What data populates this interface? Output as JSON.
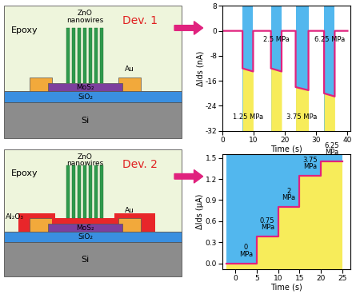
{
  "schematics": [
    {
      "device": "Dev. 1",
      "labels": {
        "epoxy": "Epoxy",
        "nanowires": "ZnO\nnanowires",
        "electrode": "Au",
        "channel": "MoS₂",
        "dielectric": "SiO₂",
        "substrate": "Si"
      }
    },
    {
      "device": "Dev. 2",
      "labels": {
        "epoxy": "Epoxy",
        "nanowires": "ZnO\nnanowires",
        "electrode": "Au",
        "channel": "MoS₂",
        "dielectric": "SiO₂",
        "substrate": "Si",
        "passivation": "Al₂O₃"
      }
    }
  ],
  "chart_data": [
    {
      "type": "line",
      "x_label": "Time (s)",
      "y_label": "ΔIds (nA)",
      "x": [
        0,
        6.4,
        6.4,
        9.8,
        9.8,
        15.5,
        15.5,
        18.9,
        18.9,
        23.4,
        23.4,
        27.5,
        27.5,
        32.5,
        32.5,
        35.9,
        35.9,
        40
      ],
      "values": [
        0,
        0,
        -12,
        -13,
        0,
        0,
        -12,
        -13,
        0,
        0,
        -18,
        -19,
        0,
        0,
        -20,
        -21,
        0,
        0
      ],
      "color": "#e0227e",
      "line_style": "solid",
      "xlim": [
        0,
        41
      ],
      "xticks": [
        0,
        10,
        20,
        30,
        40
      ],
      "ylim": [
        -32,
        8
      ],
      "yticks": [
        -32,
        -24,
        -16,
        -8,
        0,
        8
      ],
      "pressure_intervals": [
        {
          "start": 6.4,
          "end": 9.8,
          "label": "1.25 MPa"
        },
        {
          "start": 15.5,
          "end": 18.9,
          "label": "2.5 MPa"
        },
        {
          "start": 23.4,
          "end": 27.5,
          "label": "3.75 MPa"
        },
        {
          "start": 32.5,
          "end": 35.9,
          "label": "6.25 MPa"
        }
      ]
    },
    {
      "type": "line",
      "x_label": "Time (s)",
      "y_label": "ΔIds (μA)",
      "x": [
        -2,
        5,
        5,
        10,
        10,
        15,
        15,
        20,
        20,
        25
      ],
      "values": [
        0,
        0,
        0.38,
        0.38,
        0.8,
        0.8,
        1.24,
        1.24,
        1.45,
        1.45
      ],
      "color": "#e0227e",
      "line_style": "solid",
      "xlim": [
        -3,
        27
      ],
      "xticks": [
        0,
        5,
        10,
        15,
        20,
        25
      ],
      "ylim": [
        -0.08,
        1.55
      ],
      "yticks": [
        {
          "value": 0,
          "label": "0.0"
        },
        0.3,
        0.6,
        0.9,
        1.2,
        1.5
      ],
      "pressure_steps": [
        {
          "start": 0,
          "value": 0,
          "label": "0\nMPa"
        },
        {
          "start": 5,
          "value": 0.38,
          "label": "0.75\nMPa"
        },
        {
          "start": 10,
          "value": 0.8,
          "label": "2\nMPa"
        },
        {
          "start": 15,
          "value": 1.24,
          "label": "3.75\nMPa"
        },
        {
          "start": 20,
          "value": 1.45,
          "label": "6.25\nMPa"
        }
      ]
    }
  ]
}
